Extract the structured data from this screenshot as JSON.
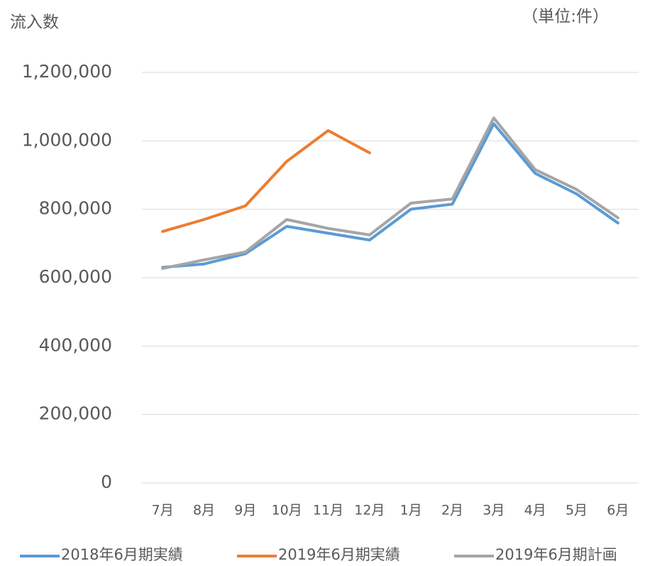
{
  "chart_data": {
    "type": "line",
    "title": "流入数",
    "unit_note": "（単位:件）",
    "categories": [
      "7月",
      "8月",
      "9月",
      "10月",
      "11月",
      "12月",
      "1月",
      "2月",
      "3月",
      "4月",
      "5月",
      "6月"
    ],
    "series": [
      {
        "name": "2018年6月期実績",
        "color": "#5b9bd5",
        "values": [
          630000,
          640000,
          670000,
          750000,
          730000,
          710000,
          800000,
          815000,
          1050000,
          905000,
          845000,
          760000
        ]
      },
      {
        "name": "2019年6月期実績",
        "color": "#ed7d31",
        "values": [
          735000,
          770000,
          810000,
          940000,
          1030000,
          965000,
          null,
          null,
          null,
          null,
          null,
          null
        ]
      },
      {
        "name": "2019年6月期計画",
        "color": "#a5a5a5",
        "values": [
          627000,
          652000,
          675000,
          770000,
          744000,
          725000,
          818000,
          830000,
          1067000,
          916000,
          858000,
          775000
        ]
      }
    ],
    "ylim": [
      0,
      1200000
    ],
    "yticks": [
      0,
      {
        "value": 200000,
        "label": "200,000"
      },
      {
        "value": 400000,
        "label": "400,000"
      },
      {
        "value": 600000,
        "label": "600,000"
      },
      {
        "value": 800000,
        "label": "800,000"
      },
      {
        "value": 1000000,
        "label": "1,000,000"
      },
      {
        "value": 1200000,
        "label": "1,200,000"
      }
    ],
    "grid": true,
    "legend": "bottom"
  }
}
